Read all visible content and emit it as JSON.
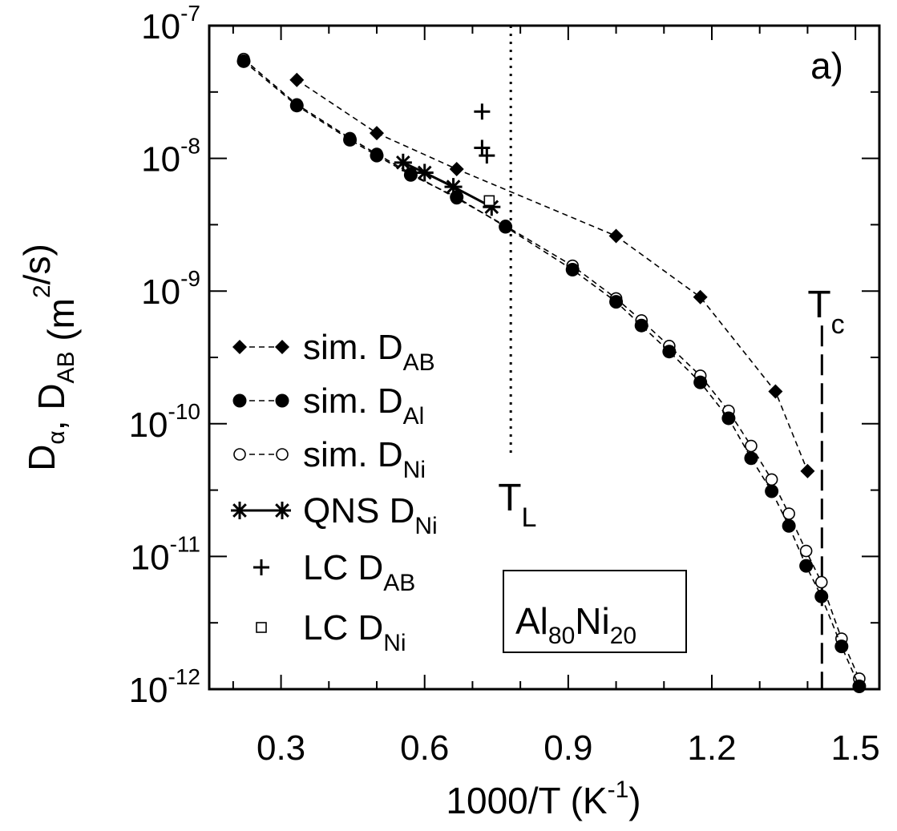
{
  "chart_data": {
    "type": "scatter",
    "xlabel": "1000/T (K",
    "xlabel_sup": "-1",
    "xlabel_tail": ")",
    "ylabel_parts": [
      {
        "t": "D",
        "s": "n"
      },
      {
        "t": "α",
        "s": "sub"
      },
      {
        "t": ", D",
        "s": "n"
      },
      {
        "t": "AB",
        "s": "sub"
      },
      {
        "t": " (m",
        "s": "n"
      },
      {
        "t": "2",
        "s": "sup"
      },
      {
        "t": "/s)",
        "s": "n"
      }
    ],
    "xlim": [
      0.15,
      1.55
    ],
    "ylim": [
      1e-12,
      1e-07
    ],
    "y_scale": "log",
    "x_ticks": [
      0.3,
      0.6,
      0.9,
      1.2,
      1.5
    ],
    "x_tick_labels": [
      "0.3",
      "0.6",
      "0.9",
      "1.2",
      "1.5"
    ],
    "y_ticks": [
      {
        "value": 1e-07,
        "base": "10",
        "exp": "-7"
      },
      {
        "value": 1e-08,
        "base": "10",
        "exp": "-8"
      },
      {
        "value": 1e-09,
        "base": "10",
        "exp": "-9"
      },
      {
        "value": 1e-10,
        "base": "10",
        "exp": "-10"
      },
      {
        "value": 1e-11,
        "base": "10",
        "exp": "-11"
      },
      {
        "value": 1e-12,
        "base": "10",
        "exp": "-12"
      }
    ],
    "panel_label": "a)",
    "alloy": {
      "p1": "Al",
      "s1": "80",
      "p2": "Ni",
      "s2": "20"
    },
    "series": [
      {
        "name_main": "sim. D",
        "name_sub": "AB",
        "marker": "diamond",
        "line": "dashed",
        "x": [
          0.333,
          0.5,
          0.667,
          1.0,
          1.176,
          1.333,
          1.4
        ],
        "y": [
          3.9e-08,
          1.55e-08,
          8.3e-09,
          2.6e-09,
          9e-10,
          1.75e-10,
          4.4e-11
        ]
      },
      {
        "name_main": "sim. D",
        "name_sub": "Al",
        "marker": "filled-circle",
        "line": "dashed",
        "x": [
          0.222,
          0.333,
          0.444,
          0.5,
          0.571,
          0.667,
          0.769,
          0.909,
          1.0,
          1.053,
          1.111,
          1.176,
          1.235,
          1.282,
          1.325,
          1.361,
          1.397,
          1.429,
          1.471,
          1.508
        ],
        "y": [
          5.4e-08,
          2.5e-08,
          1.38e-08,
          1.05e-08,
          7.5e-09,
          5.1e-09,
          3.05e-09,
          1.45e-09,
          8.3e-10,
          5.5e-10,
          3.5e-10,
          2.05e-10,
          1.1e-10,
          5.5e-11,
          3.1e-11,
          1.7e-11,
          8.5e-12,
          5e-12,
          2.1e-12,
          1.05e-12
        ]
      },
      {
        "name_main": "sim. D",
        "name_sub": "Ni",
        "marker": "open-circle",
        "line": "dashed",
        "x": [
          0.222,
          0.333,
          0.444,
          0.5,
          0.571,
          0.667,
          0.769,
          0.909,
          1.0,
          1.053,
          1.111,
          1.176,
          1.235,
          1.282,
          1.325,
          1.361,
          1.397,
          1.429,
          1.471,
          1.508
        ],
        "y": [
          5.6e-08,
          2.55e-08,
          1.42e-08,
          1.08e-08,
          7.7e-09,
          5e-09,
          3.1e-09,
          1.55e-09,
          8.8e-10,
          6e-10,
          3.85e-10,
          2.3e-10,
          1.25e-10,
          6.8e-11,
          3.8e-11,
          2.1e-11,
          1.1e-11,
          6.4e-12,
          2.4e-12,
          1.2e-12
        ]
      },
      {
        "name_main": "QNS D",
        "name_sub": "Ni",
        "marker": "asterisk",
        "line": "solid",
        "x": [
          0.555,
          0.6,
          0.66,
          0.74
        ],
        "y": [
          9.3e-09,
          7.8e-09,
          6.1e-09,
          4.3e-09
        ]
      },
      {
        "name_main": "LC D",
        "name_sub": "AB",
        "marker": "plus",
        "line": "none",
        "x": [
          0.72,
          0.72,
          0.73
        ],
        "y": [
          2.25e-08,
          1.2e-08,
          1.05e-08
        ]
      },
      {
        "name_main": "LC D",
        "name_sub": "Ni",
        "marker": "open-square",
        "line": "none",
        "x": [
          0.735
        ],
        "y": [
          4.8e-09
        ]
      }
    ],
    "annotations": [
      {
        "main": "T",
        "sub": "L",
        "x": 0.78,
        "style": "dotted",
        "y_top": 1e-07,
        "y_bottom": 5.5e-11
      },
      {
        "main": "T",
        "sub": "c",
        "x": 1.43,
        "style": "dashed",
        "y_top": 5.5e-10,
        "y_bottom": 1e-12
      }
    ]
  }
}
